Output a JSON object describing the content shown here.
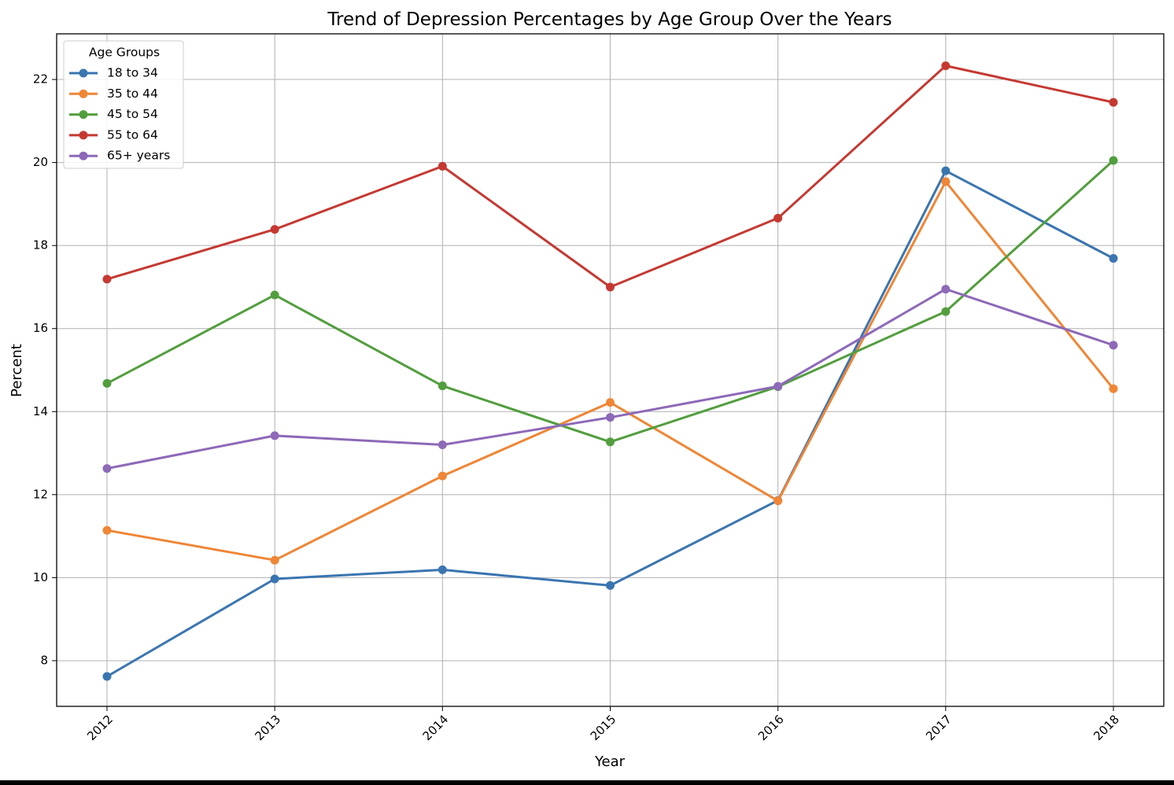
{
  "chart_data": {
    "type": "line",
    "title": "Trend of Depression Percentages by Age Group Over the Years",
    "xlabel": "Year",
    "ylabel": "Percent",
    "x": [
      "2012",
      "2013",
      "2014",
      "2015",
      "2016",
      "2017",
      "2018"
    ],
    "ylim": [
      6.9,
      23.1
    ],
    "yticks": [
      "8",
      "10",
      "12",
      "14",
      "16",
      "18",
      "20",
      "22"
    ],
    "grid": true,
    "legend": {
      "title": "Age Groups",
      "placement": "top-left"
    },
    "series": [
      {
        "name": "18 to 34",
        "color": "#3a75b0",
        "values": [
          7.62,
          9.97,
          10.19,
          9.81,
          11.86,
          19.8,
          17.69
        ]
      },
      {
        "name": "35 to 44",
        "color": "#ef8636",
        "values": [
          11.14,
          10.42,
          12.45,
          14.22,
          11.85,
          19.54,
          14.55
        ]
      },
      {
        "name": "45 to 54",
        "color": "#529e3e",
        "values": [
          14.68,
          16.81,
          14.62,
          13.27,
          14.6,
          16.41,
          20.05
        ]
      },
      {
        "name": "55 to 64",
        "color": "#c53932",
        "values": [
          17.19,
          18.39,
          19.91,
          17.0,
          18.66,
          22.33,
          21.45
        ]
      },
      {
        "name": "65+ years",
        "color": "#8d69b8",
        "values": [
          12.63,
          13.42,
          13.2,
          13.86,
          14.61,
          16.95,
          15.6
        ]
      }
    ]
  }
}
